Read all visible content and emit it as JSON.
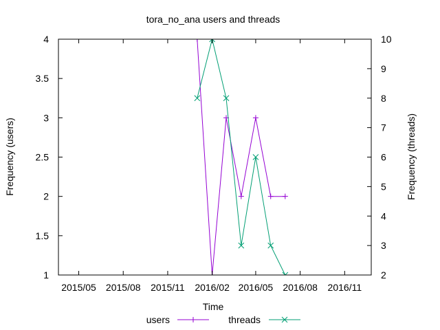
{
  "chart_data": {
    "type": "line",
    "title": "tora_no_ana users and threads",
    "xlabel": "Time",
    "ylabel": "Frequency (users)",
    "y2label": "Frequency (threads)",
    "x_ticks": [
      "2015/05",
      "2015/08",
      "2015/11",
      "2016/02",
      "2016/05",
      "2016/08",
      "2016/11"
    ],
    "xlim": [
      "2015-03-20",
      "2016-12-26"
    ],
    "ylim": [
      1,
      4
    ],
    "y2lim": [
      2,
      10
    ],
    "y_ticks": [
      "1",
      "1.5",
      "2",
      "2.5",
      "3",
      "3.5",
      "4"
    ],
    "y2_ticks": [
      "2",
      "3",
      "4",
      "5",
      "6",
      "7",
      "8",
      "9",
      "10"
    ],
    "grid": false,
    "legend_position": "bottom-center",
    "series": [
      {
        "name": "users",
        "axis": "left",
        "color": "#9400d3",
        "marker": "plus",
        "points": [
          {
            "x": "2016-01-01",
            "y": 4
          },
          {
            "x": "2016-02-01",
            "y": 1
          },
          {
            "x": "2016-03-01",
            "y": 3
          },
          {
            "x": "2016-04-01",
            "y": 2
          },
          {
            "x": "2016-05-01",
            "y": 3
          },
          {
            "x": "2016-06-01",
            "y": 2
          },
          {
            "x": "2016-07-01",
            "y": 2
          }
        ]
      },
      {
        "name": "threads",
        "axis": "right",
        "color": "#009e73",
        "marker": "cross",
        "points": [
          {
            "x": "2016-01-01",
            "y": 8
          },
          {
            "x": "2016-02-01",
            "y": 10
          },
          {
            "x": "2016-03-01",
            "y": 8
          },
          {
            "x": "2016-04-01",
            "y": 3
          },
          {
            "x": "2016-05-01",
            "y": 6
          },
          {
            "x": "2016-06-01",
            "y": 3
          },
          {
            "x": "2016-07-01",
            "y": 2
          }
        ]
      }
    ]
  }
}
